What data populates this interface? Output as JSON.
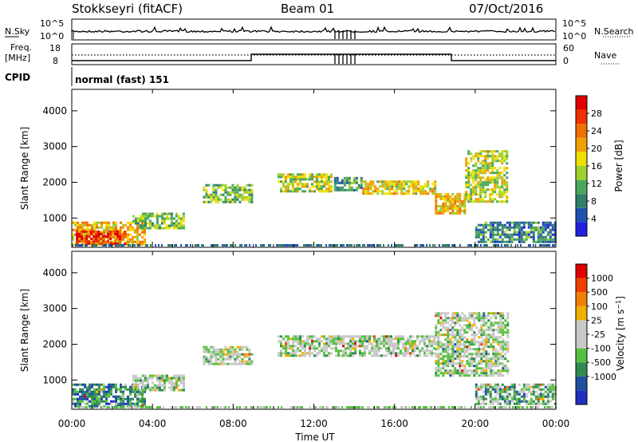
{
  "header": {
    "station": "Stokkseyri (fitACF)",
    "beam": "Beam 01",
    "date": "07/Oct/2016"
  },
  "top_panels": {
    "nsky_label": "N.Sky",
    "nsearch_label": "N.Search",
    "nsky_ticks": [
      "10^5",
      "10^0"
    ],
    "nsearch_ticks": [
      "10^5",
      "10^0"
    ],
    "freq_label_1": "Freq.",
    "freq_label_2": "[MHz]",
    "freq_ticks": [
      "18",
      "8"
    ],
    "nave_label": "Nave",
    "nave_ticks": [
      "60",
      "0"
    ],
    "cpid_label": "CPID",
    "cpid_value": "normal (fast) 151"
  },
  "chart_data": [
    {
      "type": "heatmap",
      "name": "power",
      "ylabel": "Slant Range [km]",
      "ylim": [
        180,
        4600
      ],
      "yticks": [
        "1000",
        "2000",
        "3000",
        "4000"
      ],
      "colorbar_label": "Power [dB]",
      "colorbar_ticks": [
        "4",
        "8",
        "12",
        "16",
        "20",
        "24",
        "28"
      ],
      "colors": [
        "#2020e0",
        "#2050b0",
        "#2f7f6a",
        "#49a85c",
        "#9ed030",
        "#f0e000",
        "#f0a000",
        "#f07000",
        "#f03000",
        "#e00000"
      ],
      "regions": [
        {
          "t0": 0.0,
          "t1": 3.6,
          "r0": 250,
          "r1": 900,
          "level": 0.62
        },
        {
          "t0": 0.2,
          "t1": 2.6,
          "r0": 300,
          "r1": 650,
          "level": 0.85
        },
        {
          "t0": 3.0,
          "t1": 5.6,
          "r0": 700,
          "r1": 1150,
          "level": 0.42
        },
        {
          "t0": 6.5,
          "t1": 8.9,
          "r0": 1450,
          "r1": 1950,
          "level": 0.38
        },
        {
          "t0": 10.2,
          "t1": 12.9,
          "r0": 1750,
          "r1": 2250,
          "level": 0.5
        },
        {
          "t0": 13.0,
          "t1": 14.4,
          "r0": 1800,
          "r1": 2150,
          "level": 0.3
        },
        {
          "t0": 14.4,
          "t1": 18.0,
          "r0": 1650,
          "r1": 2050,
          "level": 0.55
        },
        {
          "t0": 18.0,
          "t1": 19.5,
          "r0": 1150,
          "r1": 1700,
          "level": 0.6
        },
        {
          "t0": 19.5,
          "t1": 21.6,
          "r0": 1450,
          "r1": 2900,
          "level": 0.5
        },
        {
          "t0": 20.0,
          "t1": 24.0,
          "r0": 300,
          "r1": 900,
          "level": 0.25
        }
      ]
    },
    {
      "type": "heatmap",
      "name": "velocity",
      "ylabel": "Slant Range [km]",
      "ylim": [
        180,
        4600
      ],
      "yticks": [
        "1000",
        "2000",
        "3000",
        "4000"
      ],
      "colorbar_label": "Velocity [m s^-1]",
      "colorbar_ticks": [
        "1000",
        "500",
        "100",
        "25",
        "-25",
        "-100",
        "-500",
        "-1000"
      ],
      "colors": [
        "#2030c0",
        "#2050a0",
        "#2f8a50",
        "#55c040",
        "#c8c8c8",
        "#c8c8c8",
        "#f0b000",
        "#f08000",
        "#f04000",
        "#e00000"
      ],
      "regions": [
        {
          "t0": 0.0,
          "t1": 3.6,
          "r0": 250,
          "r1": 900,
          "level": 0.25
        },
        {
          "t0": 3.0,
          "t1": 5.6,
          "r0": 700,
          "r1": 1150,
          "level": 0.45
        },
        {
          "t0": 6.5,
          "t1": 8.9,
          "r0": 1450,
          "r1": 1950,
          "level": 0.45
        },
        {
          "t0": 10.2,
          "t1": 18.0,
          "r0": 1650,
          "r1": 2250,
          "level": 0.45
        },
        {
          "t0": 18.0,
          "t1": 21.6,
          "r0": 1150,
          "r1": 2900,
          "level": 0.45
        },
        {
          "t0": 20.0,
          "t1": 24.0,
          "r0": 300,
          "r1": 900,
          "level": 0.35
        }
      ]
    }
  ],
  "x_axis": {
    "label": "Time UT",
    "ticks": [
      "00:00",
      "04:00",
      "08:00",
      "12:00",
      "16:00",
      "20:00",
      "00:00"
    ],
    "range_hours": [
      0,
      24
    ]
  }
}
